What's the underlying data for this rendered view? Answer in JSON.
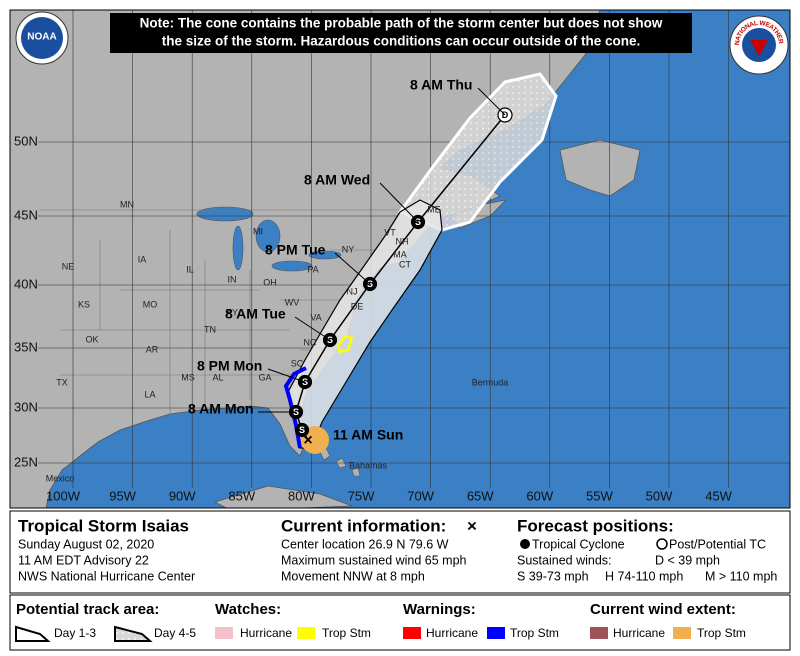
{
  "logos": {
    "noaa": "NOAA",
    "nws": "NATIONAL WEATHER SERVICE"
  },
  "note": [
    "Note: The cone contains the probable path of the storm center but does not show",
    "the size of the storm. Hazardous conditions can occur outside of the cone."
  ],
  "map": {
    "lat_labels": [
      "50N",
      "45N",
      "40N",
      "35N",
      "30N",
      "25N"
    ],
    "lon_labels": [
      "100W",
      "95W",
      "90W",
      "85W",
      "80W",
      "75W",
      "70W",
      "65W",
      "60W",
      "55W",
      "50W",
      "45W"
    ],
    "places": [
      "MN",
      "IA",
      "NE",
      "KS",
      "MO",
      "OK",
      "AR",
      "TX",
      "LA",
      "MS",
      "AL",
      "GA",
      "TN",
      "KY",
      "IL",
      "IN",
      "OH",
      "MI",
      "WV",
      "VA",
      "NC",
      "SC",
      "PA",
      "NY",
      "VT",
      "NH",
      "ME",
      "MA",
      "CT",
      "NJ",
      "DE",
      "Mexico",
      "Bermuda",
      "Bahamas"
    ],
    "forecast_labels": [
      "11 AM Sun",
      "8 AM Mon",
      "8 PM Mon",
      "8 AM Tue",
      "8 PM Tue",
      "8 AM Wed",
      "8 AM Thu"
    ],
    "intensity_codes": [
      "S",
      "S",
      "S",
      "S",
      "S",
      "S",
      "D"
    ],
    "current_marker": "×"
  },
  "info": {
    "storm": "Tropical Storm Isaias",
    "date": "Sunday August 02, 2020",
    "advisory": "11 AM EDT Advisory 22",
    "office": "NWS National Hurricane Center",
    "current_title": "Current information:",
    "current_marker": "×",
    "current": [
      "Center location 26.9 N 79.6 W",
      "Maximum sustained wind 65 mph",
      "Movement NNW at 8 mph"
    ],
    "forecast_title": "Forecast positions:",
    "tropical_cyclone": "Tropical Cyclone",
    "post_tc": "Post/Potential TC",
    "sustained": "Sustained winds:",
    "d": "D < 39 mph",
    "s": "S 39-73 mph",
    "hh": "H 74-110 mph",
    "m": "M > 110 mph"
  },
  "legend": {
    "track_title": "Potential track area:",
    "day13": "Day 1-3",
    "day45": "Day 4-5",
    "watches_title": "Watches:",
    "watch_hurricane": "Hurricane",
    "watch_ts": "Trop Stm",
    "warnings_title": "Warnings:",
    "warn_hurricane": "Hurricane",
    "warn_ts": "Trop Stm",
    "wind_title": "Current wind extent:",
    "wind_hurricane": "Hurricane",
    "wind_ts": "Trop Stm"
  }
}
